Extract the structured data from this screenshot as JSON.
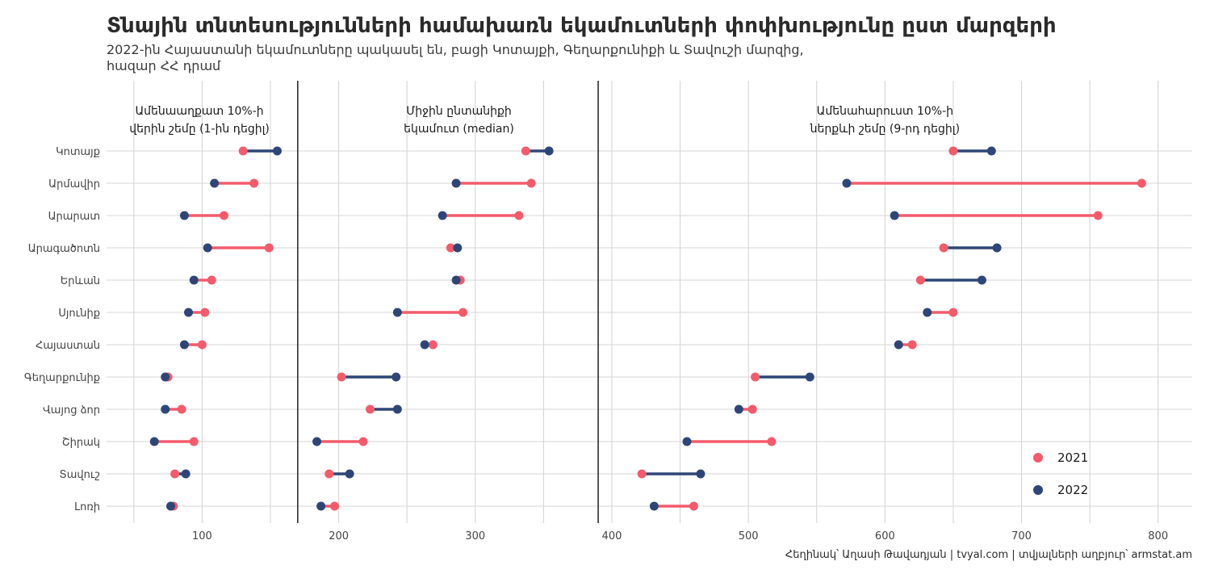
{
  "title": "Տնային տնտեսությունների համախառն եկամուտների փոփխությունը ըստ մարզերի",
  "subtitle_line1": "2022-ին Հայաստանի եկամուտները պակասել են, բացի Կոտայքի, Գեղարքունիքի և Տավուշի մարզից,",
  "subtitle_line2": "հազար ՀՀ դրամ",
  "caption": "Հեղինակ՝ Աղասի Թավադյան   |   tvyal.com   |   տվյալների աղբյուր՝ armstat.am",
  "colors": {
    "y2021": "#F35B6B",
    "y2022": "#2E4677"
  },
  "chart_data": {
    "type": "dumbbell",
    "xlim": [
      30,
      825
    ],
    "xticks": [
      100,
      200,
      300,
      400,
      500,
      600,
      700,
      800
    ],
    "grid": true,
    "legend_position": "bottom-right",
    "legend": [
      {
        "name": "2021",
        "color": "#F35B6B"
      },
      {
        "name": "2022",
        "color": "#2E4677"
      }
    ],
    "panel_dividers": [
      170,
      390
    ],
    "panels": [
      {
        "label_line1": "Ամենաաղքատ 10%-ի",
        "label_line2": "վերին շեմը (1-ին դեցիլ)",
        "center": 98
      },
      {
        "label_line1": "Միջին ընտանիքի",
        "label_line2": "եկամուտ (median)",
        "center": 288
      },
      {
        "label_line1": "Ամենահարուստ 10%-ի",
        "label_line2": "ներքևի շեմը (9-րդ դեցիլ)",
        "center": 600
      }
    ],
    "categories": [
      "Կոտայք",
      "Արմավիր",
      "Արարատ",
      "Արագածոտն",
      "Երևան",
      "Սյունիք",
      "Հայաստան",
      "Գեղարքունիք",
      "Վայոց ձոր",
      "Շիրակ",
      "Տավուշ",
      "Լոռի"
    ],
    "series": [
      {
        "group": "decile1",
        "v2021": [
          130,
          138,
          116,
          149,
          107,
          102,
          100,
          75,
          85,
          94,
          80,
          79
        ],
        "v2022": [
          155,
          109,
          87,
          104,
          94,
          90,
          87,
          73,
          73,
          65,
          88,
          77
        ]
      },
      {
        "group": "median",
        "v2021": [
          337,
          341,
          332,
          282,
          289,
          291,
          269,
          202,
          223,
          218,
          193,
          197
        ],
        "v2022": [
          354,
          286,
          276,
          287,
          286,
          243,
          263,
          242,
          243,
          184,
          208,
          187
        ]
      },
      {
        "group": "decile9",
        "v2021": [
          650,
          788,
          756,
          643,
          626,
          650,
          620,
          505,
          503,
          517,
          422,
          460
        ],
        "v2022": [
          678,
          572,
          607,
          682,
          671,
          631,
          610,
          545,
          493,
          455,
          465,
          431
        ]
      }
    ]
  }
}
